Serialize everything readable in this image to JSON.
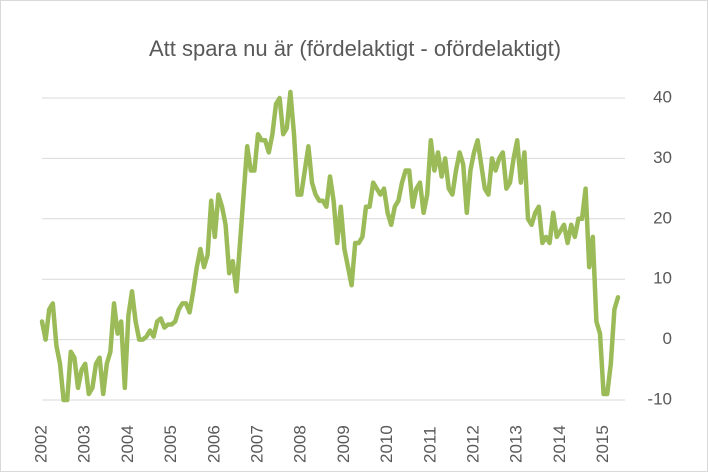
{
  "chart_data": {
    "type": "line",
    "title": "Att spara nu är (fördelaktigt - ofördelaktigt)",
    "categories": [
      "2002",
      null,
      null,
      null,
      null,
      null,
      null,
      null,
      null,
      null,
      null,
      null,
      "2003",
      null,
      null,
      null,
      null,
      null,
      null,
      null,
      null,
      null,
      null,
      null,
      "2004",
      null,
      null,
      null,
      null,
      null,
      null,
      null,
      null,
      null,
      null,
      null,
      "2005",
      null,
      null,
      null,
      null,
      null,
      null,
      null,
      null,
      null,
      null,
      null,
      "2006",
      null,
      null,
      null,
      null,
      null,
      null,
      null,
      null,
      null,
      null,
      null,
      "2007",
      null,
      null,
      null,
      null,
      null,
      null,
      null,
      null,
      null,
      null,
      null,
      "2008",
      null,
      null,
      null,
      null,
      null,
      null,
      null,
      null,
      null,
      null,
      null,
      "2009",
      null,
      null,
      null,
      null,
      null,
      null,
      null,
      null,
      null,
      null,
      null,
      "2010",
      null,
      null,
      null,
      null,
      null,
      null,
      null,
      null,
      null,
      null,
      null,
      "2011",
      null,
      null,
      null,
      null,
      null,
      null,
      null,
      null,
      null,
      null,
      null,
      "2012",
      null,
      null,
      null,
      null,
      null,
      null,
      null,
      null,
      null,
      null,
      null,
      "2013",
      null,
      null,
      null,
      null,
      null,
      null,
      null,
      null,
      null,
      null,
      null,
      "2014",
      null,
      null,
      null,
      null,
      null,
      null,
      null,
      null,
      null,
      null,
      null,
      "2015",
      null,
      null,
      null,
      null
    ],
    "values": [
      3,
      0,
      5,
      6,
      -1,
      -4,
      -10,
      -10,
      -2,
      -3,
      -8,
      -5,
      -4,
      -9,
      -8,
      -4,
      -3,
      -9,
      -4,
      -2,
      6,
      1,
      3,
      -8,
      4,
      8,
      3,
      0,
      0,
      0.5,
      1.5,
      0.5,
      3,
      3.5,
      2,
      2.5,
      2.5,
      3,
      5,
      6,
      6,
      4.5,
      8,
      12,
      15,
      12,
      14,
      23,
      17,
      24,
      22,
      19,
      11,
      13,
      8,
      16,
      24,
      32,
      28,
      28,
      34,
      33,
      33,
      31,
      34,
      39,
      40,
      34,
      35,
      41,
      34,
      24,
      24,
      28,
      32,
      26,
      24,
      23,
      23,
      22,
      27,
      23,
      16,
      22,
      15,
      12,
      9,
      16,
      16,
      17,
      22,
      22,
      26,
      25,
      24,
      25,
      21,
      19,
      22,
      23,
      26,
      28,
      28,
      22,
      25,
      26,
      21,
      24,
      33,
      28,
      31,
      27,
      30,
      25,
      24,
      28,
      31,
      29,
      21,
      28,
      31,
      33,
      29,
      25,
      24,
      30,
      28,
      30,
      31,
      25,
      26,
      30,
      33,
      26,
      31,
      20,
      19,
      21,
      22,
      16,
      17,
      16,
      21,
      17,
      18,
      19,
      16,
      19,
      17,
      20,
      20,
      25,
      12,
      17,
      3,
      1,
      -9,
      -9,
      -4,
      5,
      7
    ],
    "color": "#9bbb59",
    "ylim": [
      -10,
      40
    ],
    "yticks": [
      -10,
      0,
      10,
      20,
      30,
      40
    ],
    "grid": true
  }
}
